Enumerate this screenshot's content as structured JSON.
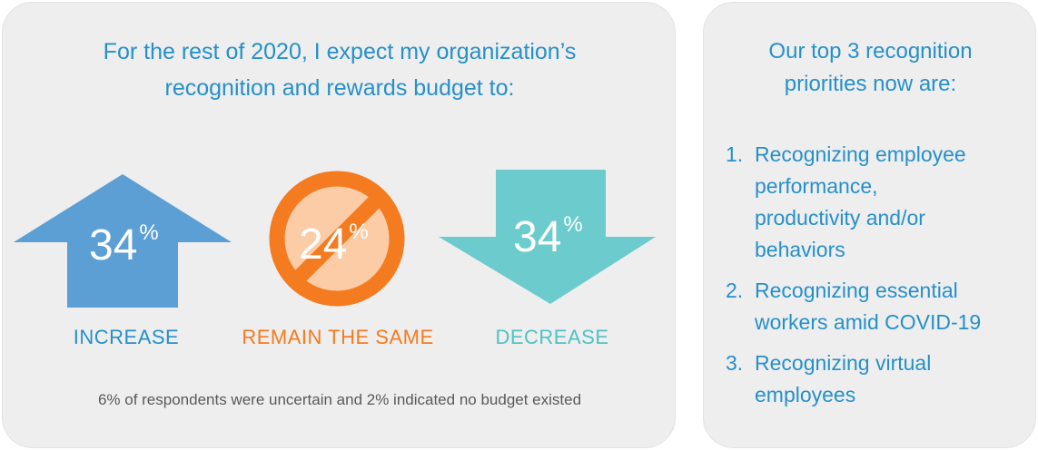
{
  "left": {
    "headline_line1": "For the rest of 2020, I expect my organization’s",
    "headline_line2": "recognition and rewards budget to:",
    "increase": {
      "value": "34",
      "unit": "%",
      "label": "INCREASE",
      "color": "#5b9fd5"
    },
    "same": {
      "value": "24",
      "unit": "%",
      "label": "REMAIN THE SAME",
      "color": "#f47b20",
      "fill": "#fbcca5"
    },
    "decrease": {
      "value": "34",
      "unit": "%",
      "label": "DECREASE",
      "color": "#6ccbcc"
    },
    "note": "6% of respondents were uncertain and 2% indicated no budget existed"
  },
  "right": {
    "title_line1": "Our top 3  recognition",
    "title_line2": "priorities now are:",
    "priorities": [
      {
        "num": "1.",
        "line1": "Recognizing employee",
        "line2": "performance,",
        "line3": "productivity and/or",
        "line4": "behaviors"
      },
      {
        "num": "2.",
        "line1": "Recognizing essential",
        "line2": "workers amid COVID-19"
      },
      {
        "num": "3.",
        "line1": "Recognizing virtual",
        "line2": "employees"
      }
    ]
  }
}
